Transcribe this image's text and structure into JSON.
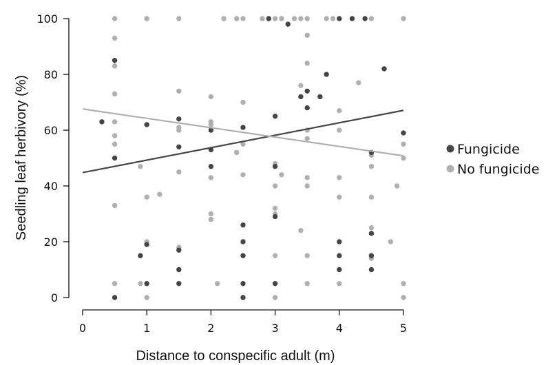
{
  "chart_data": {
    "type": "scatter",
    "xlabel": "Distance to conspecific adult (m)",
    "ylabel": "Seedling leaf herbivory (%)",
    "xlim": [
      0,
      5
    ],
    "ylim": [
      0,
      100
    ],
    "x_ticks": [
      "0",
      "1",
      "2",
      "3",
      "4",
      "5"
    ],
    "y_ticks": [
      "0",
      "20",
      "40",
      "60",
      "80",
      "100"
    ],
    "grid": false,
    "legend_position": "right",
    "series": [
      {
        "name": "Fungicide",
        "color": "#454545",
        "points": [
          [
            0.3,
            63
          ],
          [
            0.5,
            85
          ],
          [
            0.5,
            50
          ],
          [
            0.5,
            0
          ],
          [
            0.9,
            15
          ],
          [
            1.0,
            62
          ],
          [
            1.0,
            19
          ],
          [
            1.0,
            5
          ],
          [
            1.5,
            64
          ],
          [
            1.5,
            54
          ],
          [
            1.5,
            17
          ],
          [
            1.5,
            10
          ],
          [
            1.5,
            5
          ],
          [
            2.0,
            60
          ],
          [
            2.0,
            53
          ],
          [
            2.0,
            47
          ],
          [
            2.5,
            61
          ],
          [
            2.5,
            26
          ],
          [
            2.5,
            20
          ],
          [
            2.5,
            15
          ],
          [
            2.5,
            5
          ],
          [
            2.5,
            0
          ],
          [
            2.9,
            100
          ],
          [
            3.0,
            65
          ],
          [
            3.0,
            47
          ],
          [
            3.0,
            29
          ],
          [
            3.0,
            5
          ],
          [
            3.2,
            98
          ],
          [
            3.4,
            72
          ],
          [
            3.5,
            74
          ],
          [
            3.5,
            68
          ],
          [
            3.7,
            72
          ],
          [
            3.8,
            80
          ],
          [
            4.0,
            100
          ],
          [
            4.0,
            20
          ],
          [
            4.0,
            15
          ],
          [
            4.0,
            10
          ],
          [
            4.2,
            100
          ],
          [
            4.4,
            100
          ],
          [
            4.5,
            52
          ],
          [
            4.5,
            23
          ],
          [
            4.5,
            15
          ],
          [
            4.5,
            10
          ],
          [
            4.7,
            82
          ],
          [
            5.0,
            59
          ]
        ],
        "trend": [
          [
            0,
            44.8
          ],
          [
            5,
            67.1
          ]
        ]
      },
      {
        "name": "No fungicide",
        "color": "#b0b0b0",
        "points": [
          [
            0.5,
            100
          ],
          [
            0.5,
            93
          ],
          [
            0.5,
            83
          ],
          [
            0.5,
            73
          ],
          [
            0.5,
            63
          ],
          [
            0.5,
            58
          ],
          [
            0.5,
            55
          ],
          [
            0.5,
            33
          ],
          [
            0.5,
            5
          ],
          [
            0.9,
            47
          ],
          [
            0.9,
            5
          ],
          [
            1.0,
            100
          ],
          [
            1.0,
            62
          ],
          [
            1.0,
            36
          ],
          [
            1.0,
            20
          ],
          [
            1.0,
            0
          ],
          [
            1.2,
            37
          ],
          [
            1.5,
            100
          ],
          [
            1.5,
            74
          ],
          [
            1.5,
            61
          ],
          [
            1.5,
            60
          ],
          [
            1.5,
            45
          ],
          [
            1.5,
            18
          ],
          [
            2.0,
            72
          ],
          [
            2.0,
            63
          ],
          [
            2.0,
            62
          ],
          [
            2.0,
            43
          ],
          [
            2.0,
            30
          ],
          [
            2.0,
            28
          ],
          [
            2.1,
            5
          ],
          [
            2.2,
            100
          ],
          [
            2.4,
            100
          ],
          [
            2.4,
            52
          ],
          [
            2.5,
            100
          ],
          [
            2.5,
            70
          ],
          [
            2.5,
            55
          ],
          [
            2.5,
            44
          ],
          [
            2.8,
            100
          ],
          [
            3.0,
            100
          ],
          [
            3.0,
            48
          ],
          [
            3.0,
            40
          ],
          [
            3.0,
            32
          ],
          [
            3.0,
            30
          ],
          [
            3.0,
            15
          ],
          [
            3.0,
            0
          ],
          [
            3.1,
            100
          ],
          [
            3.1,
            44
          ],
          [
            3.3,
            100
          ],
          [
            3.4,
            100
          ],
          [
            3.4,
            76
          ],
          [
            3.4,
            24
          ],
          [
            3.5,
            100
          ],
          [
            3.5,
            94
          ],
          [
            3.5,
            84
          ],
          [
            3.5,
            60
          ],
          [
            3.5,
            57
          ],
          [
            3.5,
            43
          ],
          [
            3.5,
            40
          ],
          [
            3.5,
            15
          ],
          [
            3.5,
            5
          ],
          [
            3.8,
            100
          ],
          [
            3.9,
            100
          ],
          [
            4.0,
            67
          ],
          [
            4.0,
            60
          ],
          [
            4.0,
            43
          ],
          [
            4.0,
            36
          ],
          [
            4.0,
            5
          ],
          [
            4.3,
            77
          ],
          [
            4.5,
            100
          ],
          [
            4.5,
            51
          ],
          [
            4.5,
            47
          ],
          [
            4.5,
            36
          ],
          [
            4.5,
            25
          ],
          [
            4.5,
            14
          ],
          [
            4.8,
            20
          ],
          [
            4.9,
            40
          ],
          [
            5.0,
            100
          ],
          [
            5.0,
            55
          ],
          [
            5.0,
            50
          ],
          [
            5.0,
            5
          ],
          [
            5.0,
            0
          ]
        ],
        "trend": [
          [
            0,
            67.6
          ],
          [
            5,
            50.8
          ]
        ]
      }
    ]
  }
}
